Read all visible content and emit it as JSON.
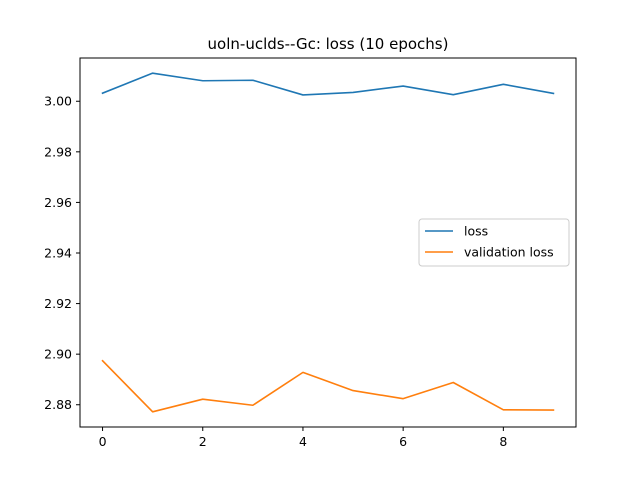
{
  "chart_data": {
    "type": "line",
    "title": "uoln-uclds--Gc: loss (10 epochs)",
    "xlabel": "",
    "ylabel": "",
    "x": [
      0,
      1,
      2,
      3,
      4,
      5,
      6,
      7,
      8,
      9
    ],
    "xlim": [
      -0.45,
      9.45
    ],
    "ylim": [
      2.8712,
      3.0171
    ],
    "x_ticks": [
      0,
      2,
      4,
      6,
      8
    ],
    "x_tick_labels": [
      "0",
      "2",
      "4",
      "6",
      "8"
    ],
    "y_ticks": [
      2.88,
      2.9,
      2.92,
      2.94,
      2.96,
      2.98,
      3.0
    ],
    "y_tick_labels": [
      "2.88",
      "2.90",
      "2.92",
      "2.94",
      "2.96",
      "2.98",
      "3.00"
    ],
    "grid": false,
    "legend_position": "center-right",
    "series": [
      {
        "name": "loss",
        "color": "#1f77b4",
        "values": [
          3.0032,
          3.0111,
          3.0081,
          3.0083,
          3.0025,
          3.0035,
          3.006,
          3.0026,
          3.0067,
          3.0031
        ]
      },
      {
        "name": "validation loss",
        "color": "#ff7f0e",
        "values": [
          2.8974,
          2.8772,
          2.8822,
          2.8798,
          2.8928,
          2.8856,
          2.8824,
          2.8888,
          2.878,
          2.8779
        ]
      }
    ]
  }
}
